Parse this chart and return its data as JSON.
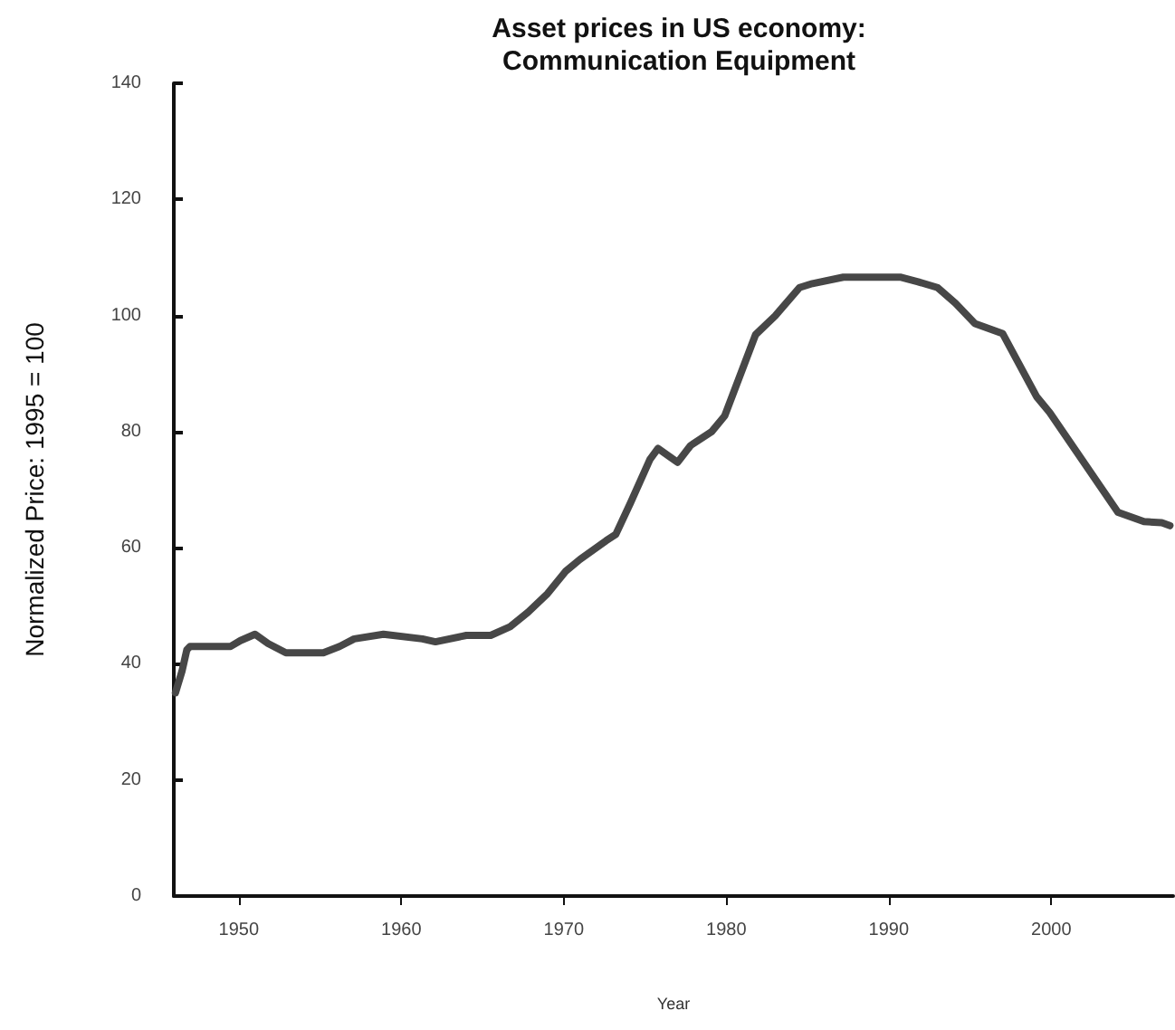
{
  "chart_data": {
    "type": "line",
    "title": "Asset prices in US economy:\nCommunication Equipment",
    "xlabel": "Year",
    "ylabel": "Normalized Price: 1995 = 100",
    "x": [
      1946.1,
      1946.5,
      1946.8,
      1947.0,
      1949.5,
      1950.1,
      1951.0,
      1951.8,
      1952.9,
      1955.2,
      1956.2,
      1957.1,
      1958.9,
      1961.3,
      1962.1,
      1964.0,
      1965.5,
      1966.7,
      1967.8,
      1969.0,
      1970.1,
      1971.0,
      1972.6,
      1973.2,
      1974.1,
      1975.3,
      1975.8,
      1977.0,
      1977.8,
      1979.1,
      1979.9,
      1981.8,
      1983.0,
      1984.5,
      1985.3,
      1987.2,
      1990.7,
      1991.8,
      1993.0,
      1994.1,
      1995.3,
      1997.0,
      1999.1,
      1999.9,
      2004.1,
      2005.7,
      2006.8,
      2007.3
    ],
    "series": [
      {
        "color": "#474747",
        "values": [
          35,
          38.7,
          42.4,
          43,
          43,
          44,
          45.1,
          43.5,
          41.9,
          41.9,
          43,
          44.3,
          45.1,
          44.3,
          43.8,
          44.9,
          44.9,
          46.4,
          48.9,
          52.1,
          55.9,
          58,
          61.2,
          62.3,
          67.7,
          75.2,
          77.1,
          74.7,
          77.6,
          80,
          82.7,
          96.7,
          99.9,
          104.8,
          105.5,
          106.6,
          106.6,
          105.8,
          104.8,
          102.1,
          98.6,
          96.9,
          86,
          83.3,
          66.1,
          64.5,
          64.3,
          63.8
        ]
      }
    ],
    "xlim": [
      1946,
      2007.5
    ],
    "xticks": [
      1950,
      1960,
      1970,
      1980,
      1990,
      2000
    ],
    "ylim": [
      0,
      140
    ],
    "yticks": [
      0,
      20,
      40,
      60,
      80,
      100,
      120,
      140
    ],
    "marker": "none",
    "line_style": "solid"
  }
}
